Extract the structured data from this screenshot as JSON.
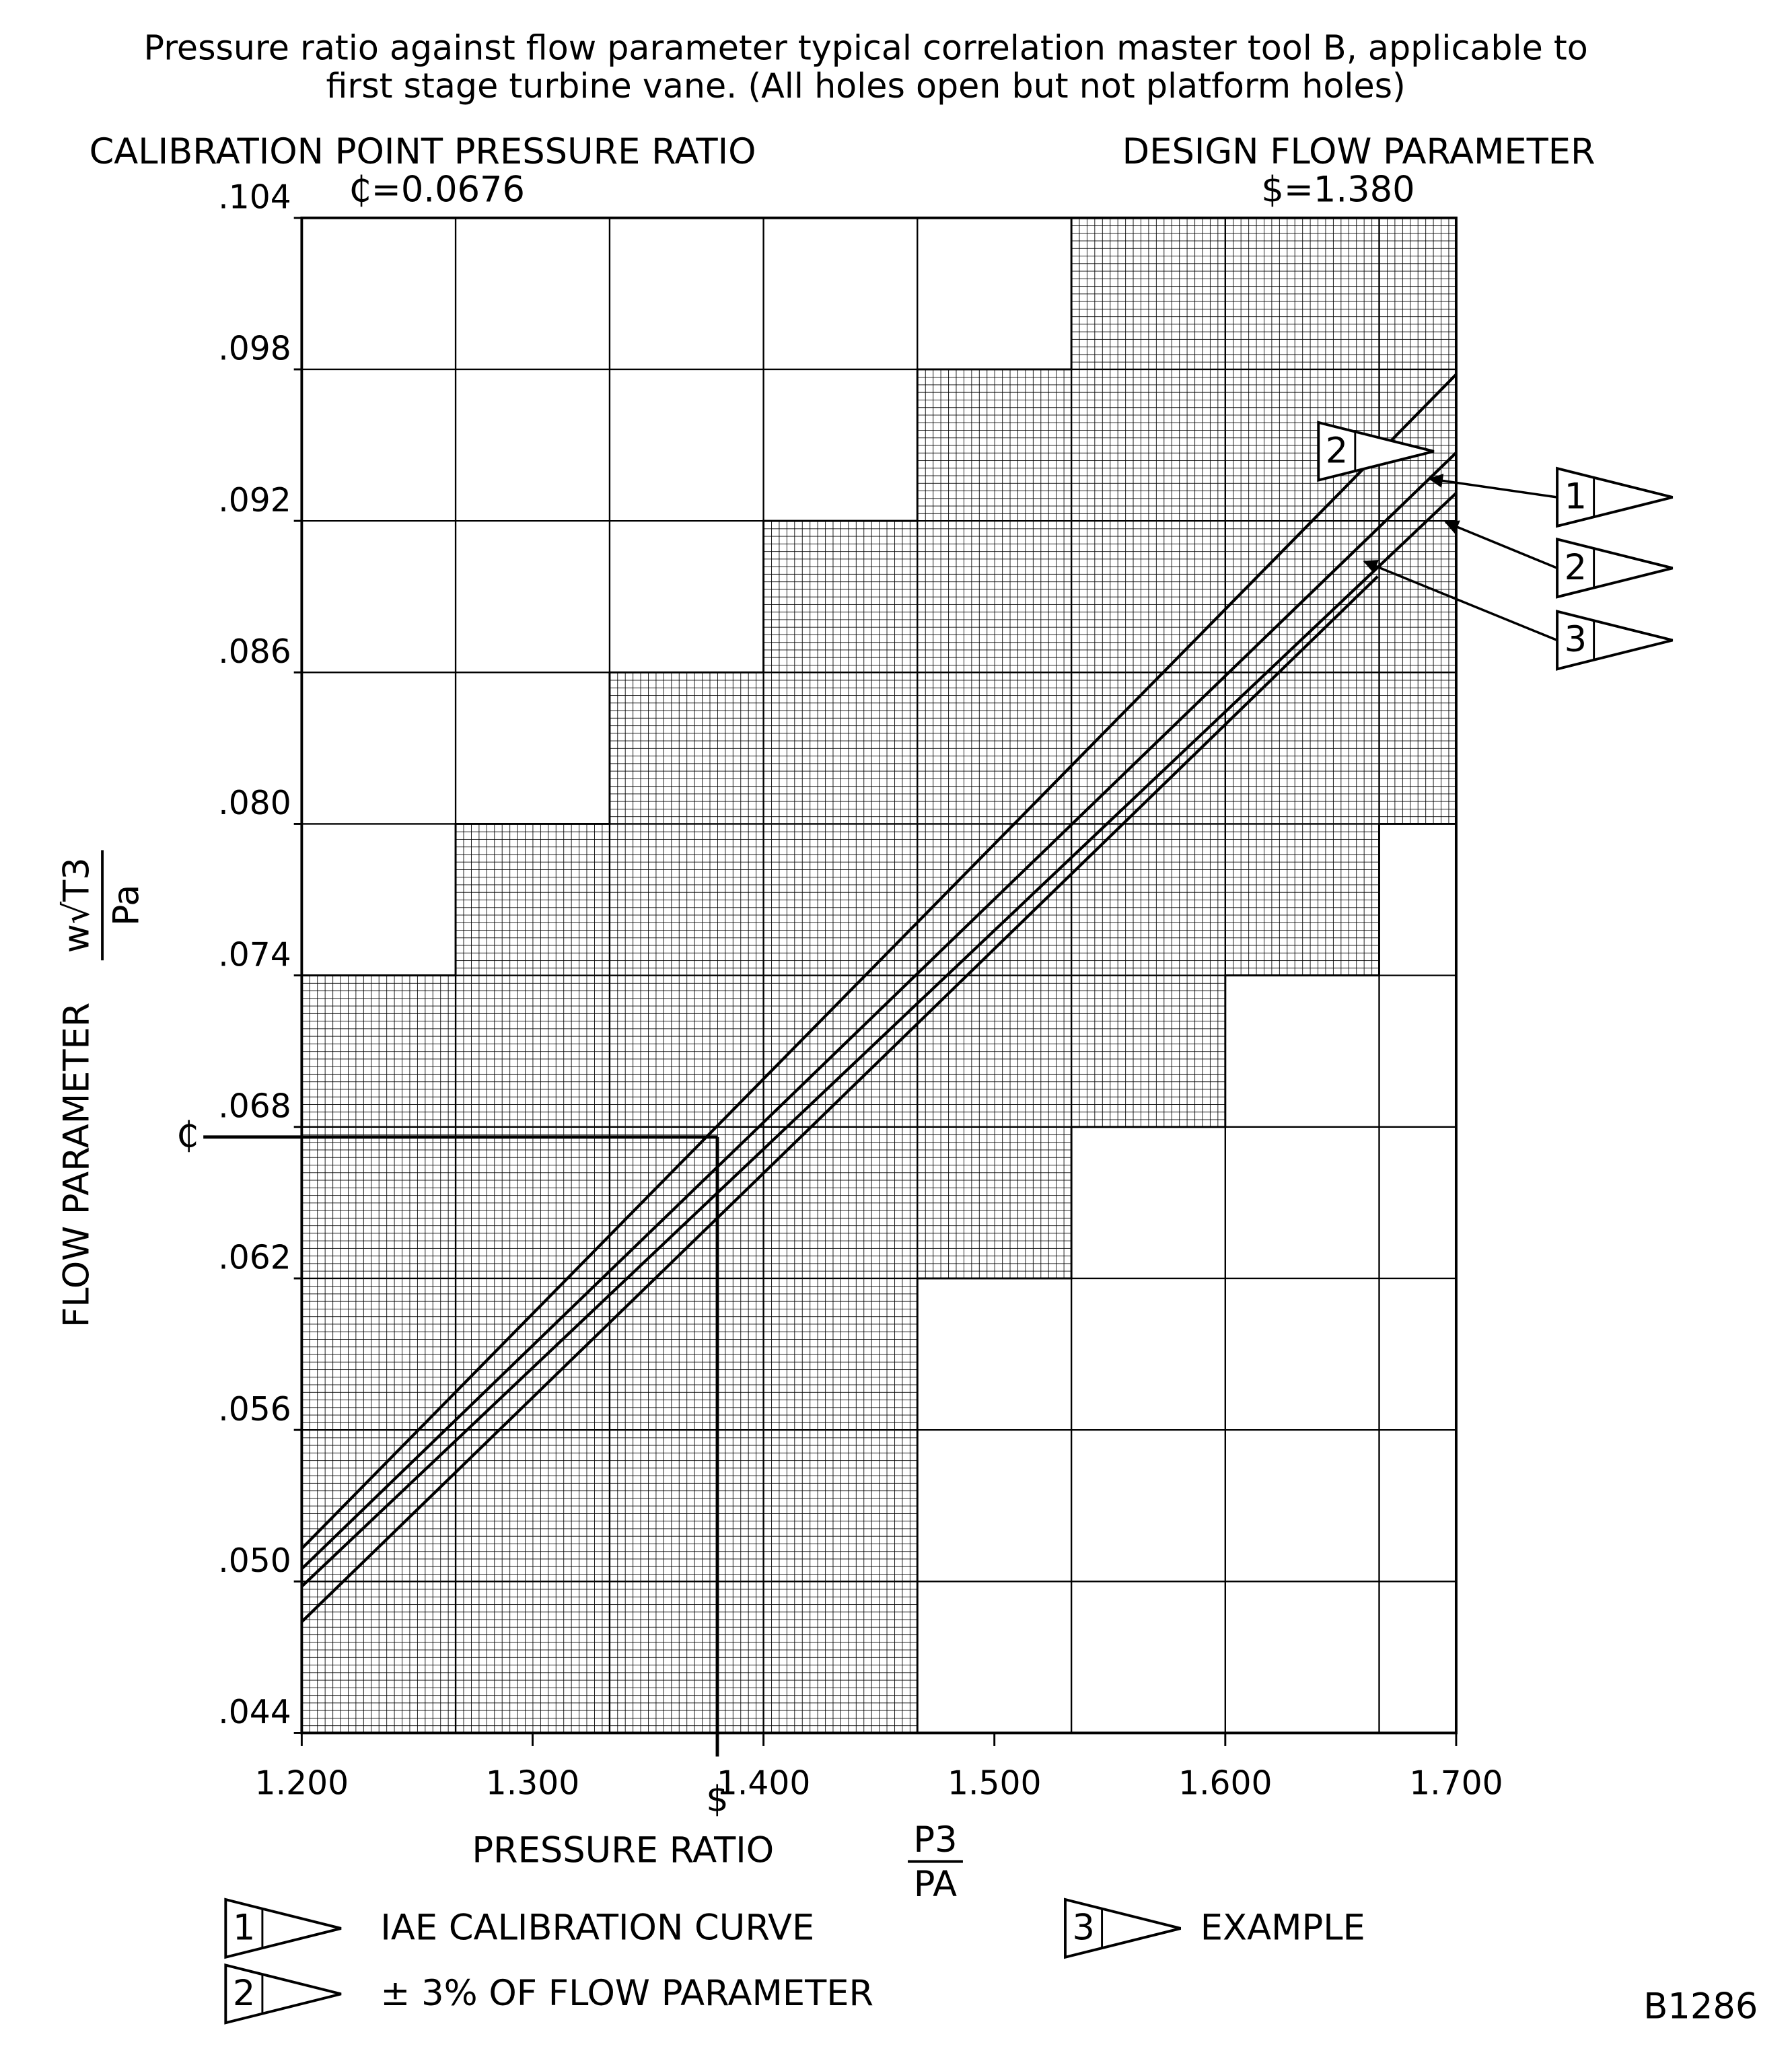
{
  "chart_data": {
    "type": "line",
    "title": [
      "Pressure ratio against flow parameter  typical correlation master tool B, applicable to",
      "first stage turbine vane. (All holes open but not platform holes)"
    ],
    "left_header": "CALIBRATION POINT PRESSURE RATIO",
    "right_header": "DESIGN FLOW PARAMETER",
    "calibration_point": {
      "label": "₵=0.0676",
      "value": 0.0676,
      "marker": "₵"
    },
    "design_point": {
      "label": "$=1.380",
      "value": 1.38,
      "marker": "$"
    },
    "x_label": "PRESSURE RATIO",
    "x_label_fraction": [
      "P3",
      "PA"
    ],
    "y_label": "FLOW PARAMETER",
    "y_label_fraction": [
      "w√T3",
      "Pa"
    ],
    "xlim": [
      1.2,
      1.7
    ],
    "ylim": [
      0.044,
      0.104
    ],
    "xticks": [
      {
        "value": 1.2,
        "label": "1.200"
      },
      {
        "value": 1.3,
        "label": "1.300"
      },
      {
        "value": 1.4,
        "label": "1.400"
      },
      {
        "value": 1.5,
        "label": "1.500"
      },
      {
        "value": 1.6,
        "label": "1.600"
      },
      {
        "value": 1.7,
        "label": "1.700"
      }
    ],
    "yticks": [
      {
        "value": 0.044,
        "label": ".044"
      },
      {
        "value": 0.05,
        "label": ".050"
      },
      {
        "value": 0.056,
        "label": ".056"
      },
      {
        "value": 0.062,
        "label": ".062"
      },
      {
        "value": 0.068,
        "label": ".068"
      },
      {
        "value": 0.074,
        "label": ".074"
      },
      {
        "value": 0.08,
        "label": ".080"
      },
      {
        "value": 0.086,
        "label": ".086"
      },
      {
        "value": 0.092,
        "label": ".092"
      },
      {
        "value": 0.098,
        "label": ".098"
      },
      {
        "value": 0.104,
        "label": ".104"
      }
    ],
    "grid": true,
    "series": [
      {
        "color": "#000000",
        "x": [
          1.2,
          1.7
        ],
        "values": [
          0.0513,
          0.0978
        ]
      },
      {
        "color": "#000000",
        "x": [
          1.2,
          1.7
        ],
        "values": [
          0.0505,
          0.0947
        ]
      },
      {
        "color": "#000000",
        "x": [
          1.2,
          1.7
        ],
        "values": [
          0.0498,
          0.0931
        ]
      },
      {
        "color": "#000000",
        "x": [
          1.2,
          1.666
        ],
        "values": [
          0.0484,
          0.0898
        ]
      }
    ],
    "callouts": [
      "2",
      "1",
      "2",
      "3"
    ],
    "legend": [
      {
        "marker": "1",
        "label": "IAE CALIBRATION CURVE"
      },
      {
        "marker": "2",
        "label": "± 3% OF FLOW PARAMETER"
      },
      {
        "marker": "3",
        "label": "EXAMPLE"
      }
    ],
    "figure_id": "B1286"
  }
}
